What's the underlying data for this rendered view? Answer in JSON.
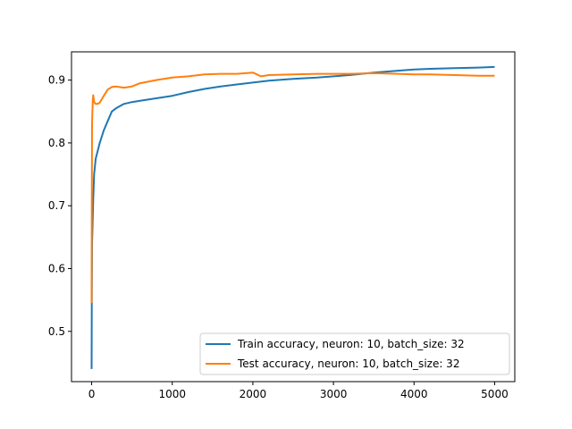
{
  "chart_data": {
    "type": "line",
    "title": "",
    "xlabel": "",
    "ylabel": "",
    "xlim": [
      -250,
      5250
    ],
    "ylim": [
      0.42,
      0.945
    ],
    "xticks": [
      0,
      1000,
      2000,
      3000,
      4000,
      5000
    ],
    "xtick_labels": [
      "0",
      "1000",
      "2000",
      "3000",
      "4000",
      "5000"
    ],
    "yticks": [
      0.5,
      0.6,
      0.7,
      0.8,
      0.9
    ],
    "ytick_labels": [
      "0.5",
      "0.6",
      "0.7",
      "0.8",
      "0.9"
    ],
    "grid": false,
    "legend_position": "lower-right",
    "series": [
      {
        "name": "Train accuracy, neuron: 10, batch_size: 32",
        "color": "#1f77b4",
        "x": [
          0,
          2,
          5,
          10,
          20,
          30,
          50,
          70,
          100,
          150,
          200,
          250,
          300,
          400,
          500,
          600,
          800,
          1000,
          1200,
          1400,
          1600,
          1800,
          2000,
          2200,
          2500,
          2800,
          3000,
          3200,
          3500,
          3800,
          4000,
          4200,
          4500,
          4800,
          5000
        ],
        "y": [
          0.44,
          0.545,
          0.64,
          0.66,
          0.71,
          0.75,
          0.775,
          0.785,
          0.8,
          0.82,
          0.835,
          0.85,
          0.855,
          0.862,
          0.865,
          0.867,
          0.871,
          0.875,
          0.881,
          0.886,
          0.89,
          0.893,
          0.896,
          0.899,
          0.902,
          0.904,
          0.906,
          0.908,
          0.912,
          0.915,
          0.917,
          0.918,
          0.919,
          0.92,
          0.921
        ]
      },
      {
        "name": "Test accuracy, neuron: 10, batch_size: 32",
        "color": "#ff7f0e",
        "x": [
          0,
          2,
          5,
          10,
          15,
          20,
          30,
          50,
          70,
          100,
          150,
          200,
          250,
          300,
          400,
          500,
          600,
          800,
          1000,
          1200,
          1400,
          1600,
          1800,
          2000,
          2100,
          2200,
          2500,
          2800,
          3000,
          3200,
          3500,
          3800,
          4000,
          4200,
          4500,
          4800,
          5000
        ],
        "y": [
          0.545,
          0.7,
          0.83,
          0.85,
          0.87,
          0.876,
          0.865,
          0.862,
          0.862,
          0.864,
          0.875,
          0.885,
          0.889,
          0.89,
          0.888,
          0.89,
          0.895,
          0.9,
          0.904,
          0.906,
          0.909,
          0.91,
          0.91,
          0.912,
          0.906,
          0.908,
          0.909,
          0.91,
          0.91,
          0.91,
          0.911,
          0.91,
          0.909,
          0.909,
          0.908,
          0.907,
          0.907
        ]
      }
    ]
  }
}
